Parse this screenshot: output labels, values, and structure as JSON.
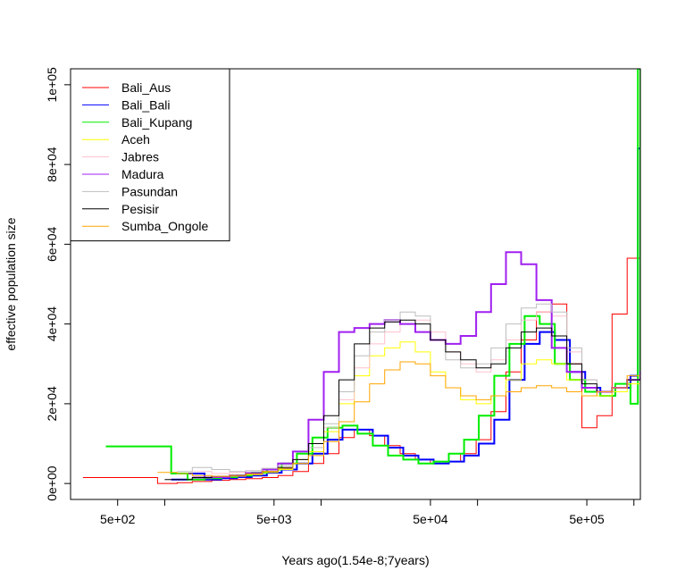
{
  "chart_data": {
    "type": "line",
    "xlabel": "Years ago(1.54e-8;7years)",
    "ylabel": "effective population size",
    "x_scale": "log",
    "xlim": [
      250,
      1100000
    ],
    "ylim": [
      -4000,
      104000
    ],
    "x_ticks": [
      {
        "value": 500,
        "label": "5e+02"
      },
      {
        "value": 5000,
        "label": "5e+03"
      },
      {
        "value": 50000,
        "label": "5e+04"
      },
      {
        "value": 500000,
        "label": "5e+05"
      }
    ],
    "x_minor_ticks": [
      1000,
      10000,
      100000,
      1000000
    ],
    "y_ticks": [
      {
        "value": 0,
        "label": "0e+00"
      },
      {
        "value": 20000,
        "label": "2e+04"
      },
      {
        "value": 40000,
        "label": "4e+04"
      },
      {
        "value": 60000,
        "label": "6e+04"
      },
      {
        "value": 80000,
        "label": "8e+04"
      },
      {
        "value": 100000,
        "label": "1e+05"
      }
    ],
    "legend": "top-left",
    "series": [
      {
        "name": "Bali_Aus",
        "color": "#ff0000",
        "width": 1,
        "x": [
          300,
          600,
          900,
          1200,
          1500,
          2000,
          2600,
          3300,
          4200,
          5300,
          6600,
          8300,
          10400,
          13000,
          16300,
          20400,
          25500,
          32000,
          40000,
          50000,
          62500,
          78000,
          98000,
          122000,
          152000,
          190000,
          238000,
          298000,
          372000,
          465000,
          580000,
          725000,
          905000
        ],
        "y": [
          1500,
          1500,
          0,
          200,
          500,
          800,
          1000,
          1200,
          1500,
          2000,
          3000,
          5000,
          7500,
          11500,
          13500,
          12000,
          9500,
          7500,
          6000,
          5000,
          5500,
          7500,
          11000,
          18000,
          28000,
          36000,
          43000,
          45000,
          30000,
          14000,
          17000,
          42500,
          56500
        ]
      },
      {
        "name": "Bali_Bali",
        "color": "#0000ff",
        "width": 2,
        "x": [
          1100,
          1400,
          1800,
          2300,
          2900,
          3600,
          4500,
          5600,
          7000,
          8800,
          11000,
          13700,
          17100,
          21400,
          26800,
          33500,
          41900,
          52400,
          65500,
          82000,
          102000,
          128000,
          160000,
          200000,
          250000,
          312000,
          390000,
          488000,
          610000,
          760000,
          950000,
          1060000,
          1100000
        ],
        "y": [
          1000,
          2500,
          1000,
          1300,
          1600,
          2000,
          2700,
          3500,
          5000,
          7500,
          11000,
          13500,
          13500,
          12000,
          9000,
          7000,
          6000,
          5000,
          5500,
          7000,
          10000,
          16000,
          26000,
          35000,
          38000,
          36000,
          28000,
          24000,
          22000,
          24000,
          27000,
          84000,
          48000
        ]
      },
      {
        "name": "Bali_Kupang",
        "color": "#00ee00",
        "width": 2,
        "x": [
          420,
          1100,
          1400,
          1800,
          2300,
          2900,
          3600,
          4500,
          5600,
          7000,
          8800,
          11000,
          13700,
          17100,
          21400,
          26800,
          33500,
          41900,
          52400,
          65500,
          82000,
          102000,
          128000,
          160000,
          200000,
          250000,
          312000,
          390000,
          488000,
          610000,
          760000,
          950000,
          1060000,
          1100000
        ],
        "y": [
          9300,
          2500,
          1000,
          1300,
          1600,
          2000,
          2700,
          3500,
          5000,
          7500,
          11500,
          14000,
          14500,
          12500,
          9500,
          7000,
          6000,
          5000,
          5500,
          7500,
          11000,
          17000,
          27000,
          35000,
          42000,
          40000,
          30000,
          26000,
          23000,
          22000,
          25000,
          20000,
          104000,
          27000
        ]
      },
      {
        "name": "Aceh",
        "color": "#ffff00",
        "width": 1,
        "x": [
          1500,
          2000,
          2600,
          3300,
          4200,
          5300,
          6600,
          8300,
          10400,
          13000,
          16300,
          20400,
          25500,
          32000,
          40000,
          50000,
          62500,
          78000,
          98000,
          122000,
          152000,
          190000,
          238000,
          298000,
          372000,
          465000,
          580000,
          725000,
          905000,
          1100000
        ],
        "y": [
          1500,
          1500,
          1800,
          2200,
          2800,
          3500,
          5000,
          8000,
          13000,
          20000,
          27000,
          32000,
          34000,
          35500,
          33000,
          28000,
          24000,
          21000,
          20000,
          22000,
          26000,
          30000,
          31000,
          30000,
          26000,
          24000,
          22000,
          23000,
          25000,
          27000
        ]
      },
      {
        "name": "Jabres",
        "color": "#ffc0cb",
        "width": 1,
        "x": [
          1500,
          2000,
          2600,
          3300,
          4200,
          5300,
          6600,
          8300,
          10400,
          13000,
          16300,
          20400,
          25500,
          32000,
          40000,
          50000,
          62500,
          78000,
          98000,
          122000,
          152000,
          190000,
          238000,
          298000,
          372000,
          465000,
          580000,
          725000,
          905000,
          1100000
        ],
        "y": [
          3000,
          2500,
          2800,
          3200,
          3800,
          4500,
          6000,
          9000,
          14000,
          21000,
          29000,
          35000,
          38000,
          40000,
          41000,
          38000,
          33000,
          30000,
          28000,
          31000,
          36000,
          41000,
          43000,
          42000,
          33000,
          26000,
          23000,
          24000,
          26000,
          28000
        ]
      },
      {
        "name": "Madura",
        "color": "#a020f0",
        "width": 2,
        "x": [
          1500,
          2000,
          2600,
          3300,
          4200,
          5300,
          6600,
          8300,
          10400,
          13000,
          16300,
          20400,
          25500,
          32000,
          40000,
          50000,
          62500,
          78000,
          98000,
          122000,
          152000,
          190000,
          238000,
          298000,
          372000,
          465000,
          580000,
          725000,
          905000,
          1100000
        ],
        "y": [
          1500,
          1600,
          2000,
          2600,
          3500,
          5000,
          8000,
          16000,
          28000,
          38000,
          39000,
          40000,
          41000,
          40000,
          38000,
          36000,
          35000,
          37000,
          43000,
          50000,
          58000,
          55000,
          46000,
          34000,
          28000,
          24000,
          23000,
          24000,
          26000,
          28000
        ]
      },
      {
        "name": "Pasundan",
        "color": "#bebebe",
        "width": 1,
        "x": [
          1200,
          1500,
          2000,
          2600,
          3300,
          4200,
          5300,
          6600,
          8300,
          10400,
          13000,
          16300,
          20400,
          25500,
          32000,
          40000,
          50000,
          62500,
          78000,
          98000,
          122000,
          152000,
          190000,
          238000,
          298000,
          372000,
          465000,
          580000,
          725000,
          905000,
          1100000
        ],
        "y": [
          3000,
          4000,
          3500,
          3000,
          3200,
          3800,
          4500,
          6000,
          9000,
          15000,
          23000,
          32000,
          38000,
          41000,
          43000,
          42000,
          36000,
          31000,
          29000,
          30000,
          34000,
          40000,
          44000,
          45000,
          43000,
          34000,
          26000,
          23000,
          24000,
          26000,
          28000
        ]
      },
      {
        "name": "Pesisir",
        "color": "#000000",
        "width": 1,
        "x": [
          1000,
          1500,
          2000,
          2600,
          3300,
          4200,
          5300,
          6600,
          8300,
          10400,
          13000,
          16300,
          20400,
          25500,
          32000,
          40000,
          50000,
          62500,
          78000,
          98000,
          122000,
          152000,
          190000,
          238000,
          298000,
          372000,
          465000,
          580000,
          725000,
          905000,
          1100000
        ],
        "y": [
          1000,
          1500,
          1800,
          2000,
          2400,
          3000,
          4000,
          6000,
          10000,
          17000,
          26000,
          35000,
          39000,
          40500,
          41000,
          40000,
          36000,
          33000,
          31000,
          29000,
          30000,
          34000,
          38000,
          39000,
          37000,
          30000,
          25000,
          23000,
          24000,
          26000,
          28000
        ]
      },
      {
        "name": "Sumba_Ongole",
        "color": "#ffa500",
        "width": 1,
        "x": [
          900,
          1200,
          1500,
          2000,
          2600,
          3300,
          4200,
          5300,
          6600,
          8300,
          10400,
          13000,
          16300,
          20400,
          25500,
          32000,
          40000,
          50000,
          62500,
          78000,
          98000,
          122000,
          152000,
          190000,
          238000,
          298000,
          372000,
          465000,
          580000,
          725000,
          905000,
          1100000
        ],
        "y": [
          2800,
          2500,
          2000,
          1800,
          2000,
          2400,
          3000,
          3800,
          5000,
          7000,
          10500,
          15500,
          20500,
          25000,
          28500,
          30500,
          30000,
          27000,
          24000,
          22000,
          21000,
          22000,
          23000,
          24000,
          24500,
          24000,
          23000,
          22000,
          23000,
          24000,
          27000,
          28000
        ]
      }
    ]
  }
}
